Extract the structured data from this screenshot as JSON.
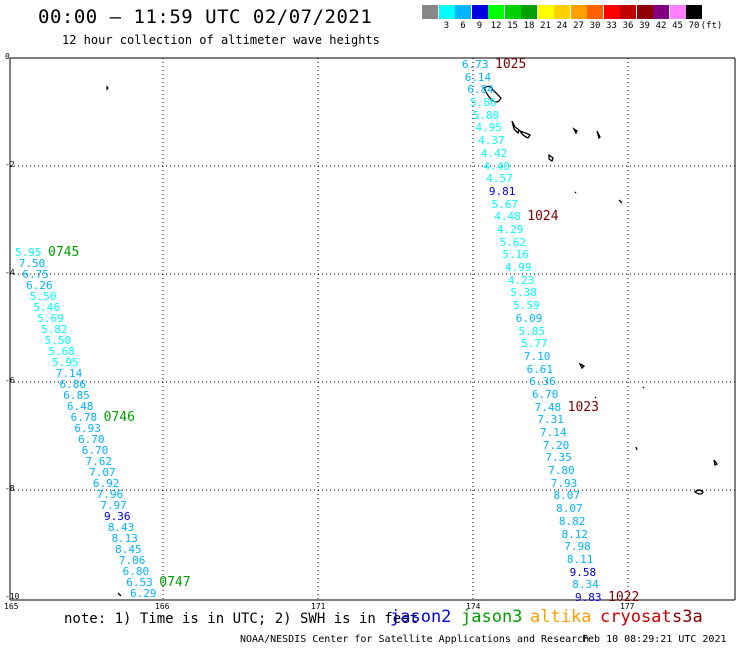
{
  "title": "00:00 – 11:59 UTC 02/07/2021",
  "subtitle": "12 hour collection of altimeter wave heights",
  "colorbar": {
    "unit": "(ft)",
    "swatches": [
      {
        "label": "",
        "color": "#888888"
      },
      {
        "label": "3",
        "color": "#00ffff"
      },
      {
        "label": "6",
        "color": "#00b4ff"
      },
      {
        "label": "9",
        "color": "#0000e0"
      },
      {
        "label": "12",
        "color": "#00ff00"
      },
      {
        "label": "15",
        "color": "#00d000"
      },
      {
        "label": "18",
        "color": "#00a000"
      },
      {
        "label": "21",
        "color": "#ffff00"
      },
      {
        "label": "24",
        "color": "#ffd000"
      },
      {
        "label": "27",
        "color": "#ffa000"
      },
      {
        "label": "30",
        "color": "#ff6000"
      },
      {
        "label": "33",
        "color": "#ff0000"
      },
      {
        "label": "36",
        "color": "#c00000"
      },
      {
        "label": "39",
        "color": "#900000"
      },
      {
        "label": "42",
        "color": "#800080"
      },
      {
        "label": "45",
        "color": "#ff80ff"
      },
      {
        "label": "70",
        "color": "#000000"
      }
    ]
  },
  "axes": {
    "lon_labels": [
      "165",
      "166",
      "171",
      "174",
      "177"
    ],
    "lat_labels": [
      "0",
      "-2",
      "-4",
      "-6",
      "-8",
      "-10"
    ]
  },
  "tracks": [
    {
      "satellite": "jason3",
      "values": [
        "5.95",
        "7.50",
        "6.75",
        "6.26",
        "5.50",
        "5.46",
        "5.69",
        "5.82",
        "5.50",
        "5.68",
        "5.95",
        "7.14",
        "6.86",
        "6.85",
        "6.48",
        "6.78",
        "6.93",
        "6.70",
        "6.70",
        "7.62",
        "7.07",
        "6.92",
        "7.96",
        "7.97",
        "9.36",
        "8.43",
        "8.13",
        "8.45",
        "7.06",
        "6.80",
        "6.53",
        "6.29"
      ],
      "times": [
        {
          "label": "0745",
          "at_index": 0
        },
        {
          "label": "0746",
          "at_index": 15
        },
        {
          "label": "0747",
          "at_index": 30
        }
      ]
    },
    {
      "satellite": "cryosat",
      "values": [
        "6.73",
        "6.14",
        "6.84",
        "5.86",
        "5.80",
        "4.95",
        "4.37",
        "4.42",
        "4.40",
        "4.57",
        "9.81",
        "5.67",
        "4.48",
        "4.29",
        "5.62",
        "5.16",
        "4.99",
        "4.23",
        "5.38",
        "5.59",
        "6.09",
        "5.85",
        "5.77",
        "7.10",
        "6.61",
        "6.36",
        "6.70",
        "7.48",
        "7.31",
        "7.14",
        "7.20",
        "7.35",
        "7.80",
        "7.93",
        "8.07",
        "8.07",
        "8.82",
        "8.12",
        "7.98",
        "8.11",
        "9.58",
        "8.34",
        "9.83"
      ],
      "times": [
        {
          "label": "1025",
          "at_index": 0
        },
        {
          "label": "1024",
          "at_index": 12
        },
        {
          "label": "1023",
          "at_index": 27
        },
        {
          "label": "1022",
          "at_index": 42
        }
      ]
    }
  ],
  "note": "note: 1) Time is in UTC; 2) SWH is in feet",
  "satellites": [
    {
      "name": "jason2",
      "color": "#0000e0"
    },
    {
      "name": "jason3",
      "color": "#00a000"
    },
    {
      "name": "altika",
      "color": "#ffa000"
    },
    {
      "name": "cryosat",
      "color": "#cc0000"
    },
    {
      "name": "s3a",
      "color": "#800000"
    }
  ],
  "credit": "NOAA/NESDIS Center for Satellite Applications and Research",
  "timestamp": "Feb 10 08:29:21 UTC 2021"
}
